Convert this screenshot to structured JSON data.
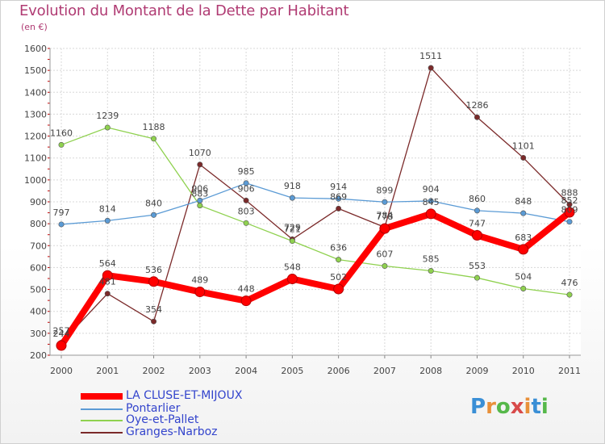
{
  "title": "Evolution du Montant de la Dette par Habitant",
  "unit": "(en €)",
  "logo": "Proxiti",
  "chart_data": {
    "type": "line",
    "title": "Evolution du Montant de la Dette par Habitant",
    "subtitle": "(en €)",
    "xlabel": "",
    "ylabel": "",
    "ylim": [
      200,
      1600
    ],
    "yticks": [
      200,
      300,
      400,
      500,
      600,
      700,
      800,
      900,
      1000,
      1100,
      1200,
      1300,
      1400,
      1500,
      1600
    ],
    "x": [
      "2000",
      "2001",
      "2002",
      "2003",
      "2004",
      "2005",
      "2006",
      "2007",
      "2008",
      "2009",
      "2010",
      "2011"
    ],
    "grid": true,
    "legend_position": "bottom-left",
    "series": [
      {
        "name": "LA CLUSE-ET-MIJOUX",
        "color": "#ff0000",
        "values": [
          244,
          564,
          536,
          489,
          448,
          548,
          502,
          778,
          845,
          747,
          683,
          852
        ],
        "labels": [
          "244",
          "564",
          "536",
          "489",
          "448",
          "548",
          "502",
          "778",
          "845",
          "747",
          "683",
          "852"
        ]
      },
      {
        "name": "Pontarlier",
        "color": "#5b9bd5",
        "values": [
          797,
          814,
          840,
          906,
          985,
          918,
          914,
          899,
          904,
          860,
          848,
          809
        ],
        "labels": [
          "797",
          "814",
          "840",
          "906",
          "985",
          "918",
          "914",
          "899",
          "904",
          "860",
          "848",
          "809"
        ]
      },
      {
        "name": "Oye-et-Pallet",
        "color": "#8fd14f",
        "values": [
          1160,
          1239,
          1188,
          883,
          803,
          721,
          636,
          607,
          585,
          553,
          504,
          476
        ],
        "labels": [
          "1160",
          "1239",
          "1188",
          "883",
          "803",
          "721",
          "636",
          "607",
          "585",
          "553",
          "504",
          "476"
        ]
      },
      {
        "name": "Granges-Narboz",
        "color": "#7b2a2a",
        "values": [
          257,
          481,
          354,
          1070,
          906,
          729,
          869,
          784,
          1511,
          1286,
          1101,
          888
        ],
        "labels": [
          "257",
          "481",
          "354",
          "1070",
          "906",
          "729",
          "869",
          "784",
          "1511",
          "1286",
          "1101",
          "888"
        ]
      }
    ]
  }
}
